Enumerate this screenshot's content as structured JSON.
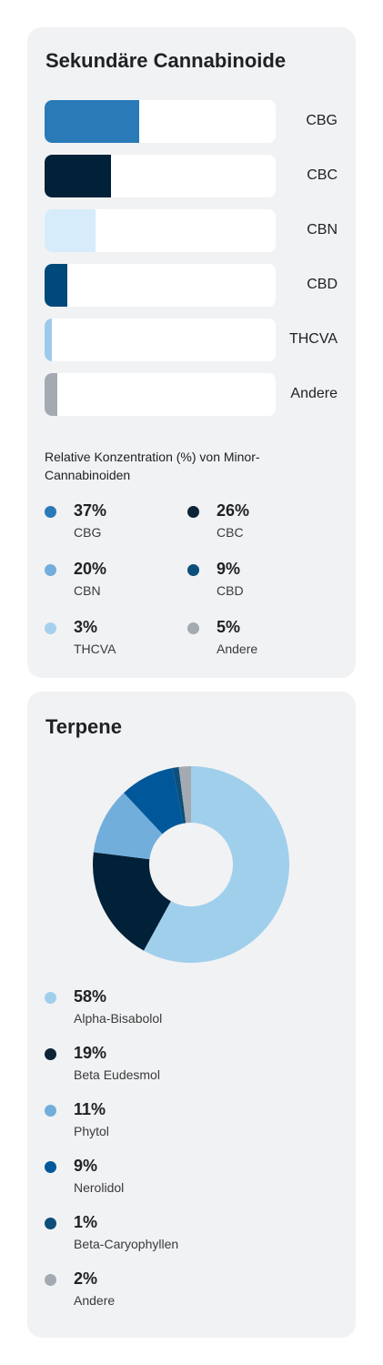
{
  "chart_data": [
    {
      "type": "bar",
      "title": "Sekundäre Cannabinoide",
      "categories": [
        "CBG",
        "CBC",
        "CBN",
        "CBD",
        "THCVA",
        "Andere"
      ],
      "values": [
        37,
        26,
        20,
        9,
        3,
        5
      ],
      "colors": [
        "#2a7ab8",
        "#002138",
        "#d6ecfb",
        "#00497a",
        "#9ccbe9",
        "#a4aab2"
      ],
      "note": "Relative Konzentration (%) von Minor-Cannabinoiden",
      "legend": [
        {
          "pct": "37%",
          "name": "CBG",
          "color": "#2a7ab8"
        },
        {
          "pct": "26%",
          "name": "CBC",
          "color": "#0d2438"
        },
        {
          "pct": "20%",
          "name": "CBN",
          "color": "#72aedb"
        },
        {
          "pct": "9%",
          "name": "CBD",
          "color": "#0d4f7a"
        },
        {
          "pct": "3%",
          "name": "THCVA",
          "color": "#a6d1ee"
        },
        {
          "pct": "5%",
          "name": "Andere",
          "color": "#a4aab2"
        }
      ]
    },
    {
      "type": "pie",
      "title": "Terpene",
      "categories": [
        "Alpha-Bisabolol",
        "Beta Eudesmol",
        "Phytol",
        "Nerolidol",
        "Beta-Caryophyllen",
        "Andere"
      ],
      "values": [
        58,
        19,
        11,
        9,
        1,
        2
      ],
      "colors": [
        "#a0cfec",
        "#002138",
        "#72aedb",
        "#00589a",
        "#0d4f7a",
        "#a4aab2"
      ],
      "legend": [
        {
          "pct": "58%",
          "name": "Alpha-Bisabolol",
          "color": "#a0cfec"
        },
        {
          "pct": "19%",
          "name": "Beta Eudesmol",
          "color": "#0d2438"
        },
        {
          "pct": "11%",
          "name": "Phytol",
          "color": "#72aedb"
        },
        {
          "pct": "9%",
          "name": "Nerolidol",
          "color": "#00589a"
        },
        {
          "pct": "1%",
          "name": "Beta-Caryophyllen",
          "color": "#0d4f7a"
        },
        {
          "pct": "2%",
          "name": "Andere",
          "color": "#a4aab2"
        }
      ]
    }
  ]
}
